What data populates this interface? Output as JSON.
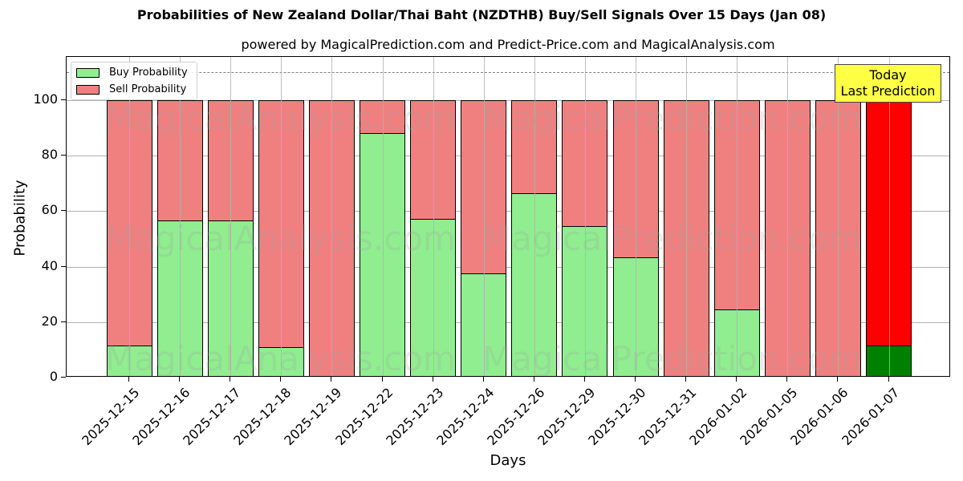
{
  "header": {
    "title": "Probabilities of New Zealand Dollar/Thai Baht (NZDTHB) Buy/Sell Signals Over 15 Days (Jan 08)",
    "subtitle": "powered by MagicalPrediction.com and Predict-Price.com and MagicalAnalysis.com"
  },
  "legend": {
    "buy_label": "Buy Probability",
    "sell_label": "Sell Probability"
  },
  "annotation": {
    "line1": "Today",
    "line2": "Last Prediction"
  },
  "axes": {
    "xlabel": "Days",
    "ylabel": "Probability",
    "yticks": [
      "0",
      "20",
      "40",
      "60",
      "80",
      "100"
    ]
  },
  "watermarks": [
    "MagicalAnalysis.com",
    "MagicalPrediction.com"
  ],
  "colors": {
    "buy": "#90ee90",
    "sell": "#f08080",
    "buy_today": "#008000",
    "sell_today": "#ff0000",
    "annotation_bg": "#ffff44"
  },
  "chart_data": {
    "type": "bar",
    "stacked": true,
    "title": "Probabilities of New Zealand Dollar/Thai Baht (NZDTHB) Buy/Sell Signals Over 15 Days (Jan 08)",
    "subtitle": "powered by MagicalPrediction.com and Predict-Price.com and MagicalAnalysis.com",
    "xlabel": "Days",
    "ylabel": "Probability",
    "ylim": [
      0,
      115
    ],
    "yticks": [
      0,
      20,
      40,
      60,
      80,
      100
    ],
    "grid": true,
    "legend_position": "upper left",
    "reference_line": {
      "y": 110,
      "style": "dashed",
      "color": "#808080"
    },
    "categories": [
      "2025-12-15",
      "2025-12-16",
      "2025-12-17",
      "2025-12-18",
      "2025-12-19",
      "2025-12-22",
      "2025-12-23",
      "2025-12-24",
      "2025-12-26",
      "2025-12-29",
      "2025-12-30",
      "2025-12-31",
      "2026-01-02",
      "2026-01-05",
      "2026-01-06",
      "2026-01-07"
    ],
    "series": [
      {
        "name": "Buy Probability",
        "values": [
          11.6,
          56.6,
          56.6,
          11.0,
          0,
          88.2,
          57.2,
          37.6,
          66.5,
          54.6,
          43.4,
          0,
          24.6,
          0,
          0,
          11.6
        ]
      },
      {
        "name": "Sell Probability",
        "values": [
          88.4,
          43.4,
          43.4,
          89.0,
          100,
          11.8,
          42.8,
          62.4,
          33.5,
          45.4,
          56.6,
          100,
          75.4,
          100,
          100,
          88.4
        ]
      }
    ],
    "annotations": [
      {
        "text": "Today\nLast Prediction",
        "category": "2026-01-07"
      }
    ]
  }
}
